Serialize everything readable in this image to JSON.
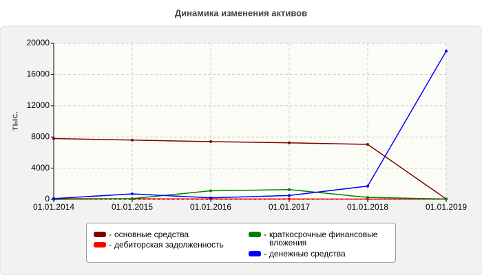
{
  "chart_data": {
    "type": "line",
    "title": "Динамика изменения активов",
    "y_label": "тыс.",
    "categories": [
      "01.01.2014",
      "01.01.2015",
      "01.01.2016",
      "01.01.2017",
      "01.01.2018",
      "01.01.2019"
    ],
    "series": [
      {
        "name": "основные средства",
        "color": "#800000",
        "values": [
          7800,
          7600,
          7400,
          7250,
          7050,
          50
        ]
      },
      {
        "name": "дебиторская задолженность",
        "color": "#ff0000",
        "values": [
          100,
          80,
          60,
          50,
          40,
          30
        ]
      },
      {
        "name": "краткосрочные финансовые вложения",
        "color": "#008000",
        "values": [
          0,
          100,
          1100,
          1250,
          250,
          50
        ]
      },
      {
        "name": "денежные средства",
        "color": "#0000ff",
        "values": [
          100,
          700,
          200,
          500,
          1700,
          19000
        ]
      }
    ],
    "ylim": [
      0,
      20000
    ],
    "yticks": [
      0,
      4000,
      8000,
      12000,
      16000,
      20000
    ],
    "grid": true
  }
}
